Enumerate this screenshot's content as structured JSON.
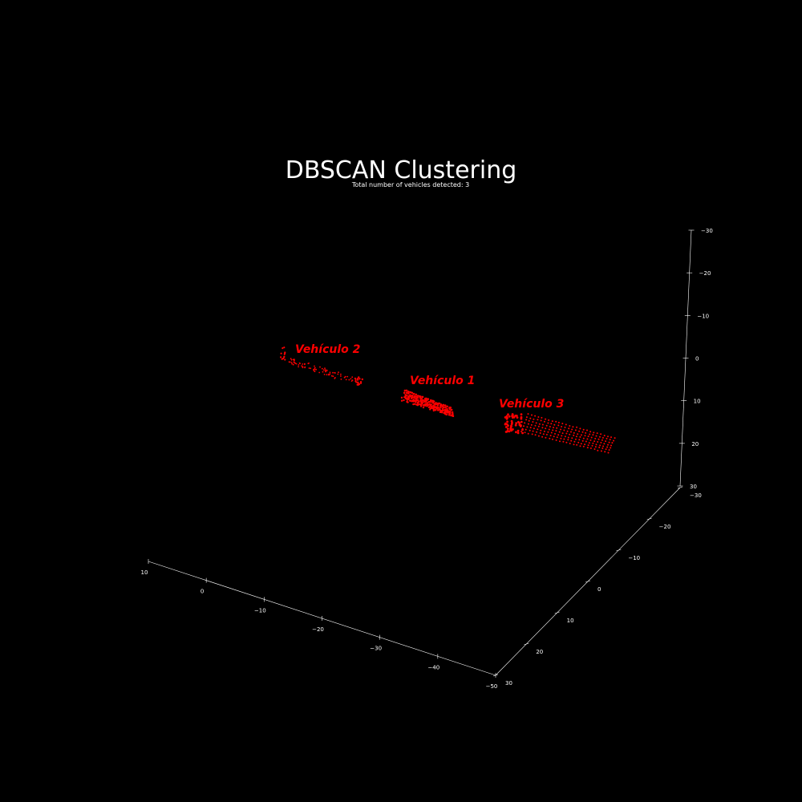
{
  "chart_data": {
    "type": "scatter",
    "projection": "3d",
    "title": "DBSCAN Clustering",
    "subtitle": "Total number of vehicles detected: 3",
    "background": "#000000",
    "axis_color": "#ffffff",
    "point_color": "#ff0000",
    "grid": false,
    "axes": {
      "x": {
        "ticks": [
          "10",
          "0",
          "−10",
          "−20",
          "−30",
          "−40",
          "−50"
        ],
        "range": [
          10,
          -50
        ]
      },
      "y": {
        "ticks": [
          "30",
          "20",
          "10",
          "0",
          "−10",
          "−20",
          "−30"
        ],
        "range": [
          30,
          -30
        ]
      },
      "z": {
        "ticks": [
          "30",
          "20",
          "10",
          "0",
          "−10",
          "−20",
          "−30"
        ],
        "range": [
          30,
          -30
        ]
      }
    },
    "clusters": [
      {
        "label": "Vehículo 1",
        "id": 1,
        "shape": "compact"
      },
      {
        "label": "Vehículo 2",
        "id": 2,
        "shape": "sparse"
      },
      {
        "label": "Vehículo 3",
        "id": 3,
        "shape": "elongated"
      }
    ]
  }
}
